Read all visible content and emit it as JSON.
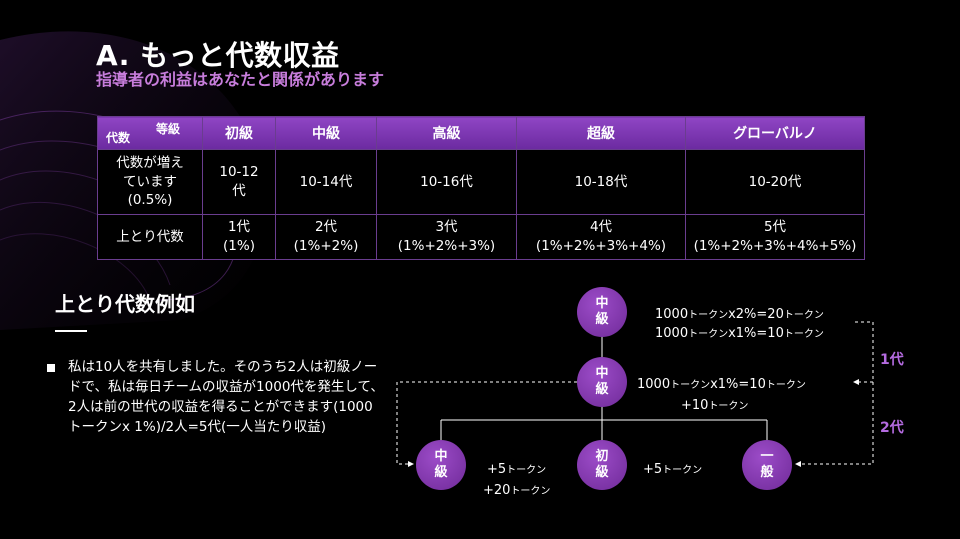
{
  "header": {
    "title": "A. もっと代数収益",
    "subtitle": "指導者の利益はあなたと関係があります"
  },
  "table": {
    "corner_top": "等級",
    "corner_bottom": "代数",
    "levels": [
      "初級",
      "中級",
      "高級",
      "超級",
      "グローバルノ"
    ],
    "rows": [
      {
        "label": "代数が増え\nています\n(0.5%)",
        "cells": [
          "10-12\n代",
          "10-14代",
          "10-16代",
          "10-18代",
          "10-20代"
        ]
      },
      {
        "label": "上とり代数",
        "cells": [
          "1代\n(1%)",
          "2代\n(1%+2%)",
          "3代\n(1%+2%+3%)",
          "4代\n(1%+2%+3%+4%)",
          "5代\n(1%+2%+3%+4%+5%)"
        ]
      }
    ]
  },
  "example": {
    "title": "上とり代数例如",
    "bullet": "私は10人を共有しました。そのうち2人は初級ノードで、私は毎日チームの収益が1000代を発生して、2人は前の世代の収益を得ることができます(1000トークンx 1%)/2人=5代(一人当たり収益)"
  },
  "diagram": {
    "nodes": {
      "top": "中\n級",
      "mid": "中\n級",
      "left": "中\n級",
      "center": "初\n級",
      "right": "一\n般"
    },
    "notes": {
      "top_1_a": "1000",
      "top_1_b": "トークン",
      "top_1_c": "x2%=20",
      "top_1_d": "トークン",
      "top_2_a": "1000",
      "top_2_b": "トークン",
      "top_2_c": "x1%=10",
      "top_2_d": "トークン",
      "mid_1_a": "1000",
      "mid_1_b": "トークン",
      "mid_1_c": "x1%=10",
      "mid_1_d": "トークン",
      "mid_2_a": "+10",
      "mid_2_b": "トークン",
      "left_1_a": "+5",
      "left_1_b": "トークン",
      "left_2_a": "+20",
      "left_2_b": "トークン",
      "center_1_a": "+5",
      "center_1_b": "トークン"
    },
    "gen1": "1代",
    "gen2": "2代"
  },
  "colors": {
    "accent": "#8f45c4",
    "subtitle": "#c77ddb",
    "node": "#7e35ad",
    "gen_label": "#b46be0"
  }
}
